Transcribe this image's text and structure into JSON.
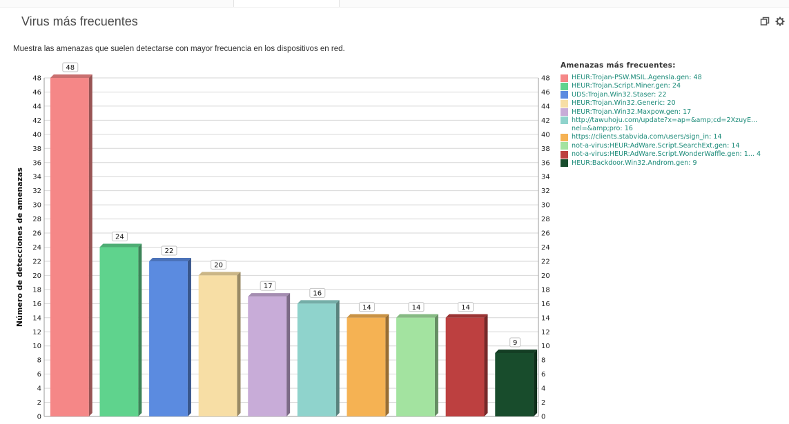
{
  "widget": {
    "title": "Virus más frecuentes",
    "description": "Muestra las amenazas que suelen detectarse con mayor frecuencia en los dispositivos en red.",
    "icons": [
      "window-restore-icon",
      "gear-icon"
    ]
  },
  "legend": {
    "title": "Amenazas más frecuentes:"
  },
  "chart_data": {
    "type": "bar",
    "ylabel": "Número de detecciones de amenazas",
    "ylim": [
      0,
      48
    ],
    "ytick_step": 2,
    "grid": true,
    "legend_position": "right",
    "series": [
      {
        "label": "HEUR:Trojan-PSW.MSIL.Agensla.gen: 48",
        "value": 48,
        "color": "#f58787"
      },
      {
        "label": "HEUR:Trojan.Script.Miner.gen: 24",
        "value": 24,
        "color": "#5fd38d"
      },
      {
        "label": "UDS:Trojan.Win32.Staser: 22",
        "value": 22,
        "color": "#5b8be0"
      },
      {
        "label": "HEUR:Trojan.Win32.Generic: 20",
        "value": 20,
        "color": "#f7dea5"
      },
      {
        "label": "HEUR:Trojan.Win32.Maxpow.gen: 17",
        "value": 17,
        "color": "#c8acd8"
      },
      {
        "label": "http://tawuhoju.com/update?x=ap=&amp;cd=2XzuyE...\nnel=&amp;pro: 16",
        "value": 16,
        "color": "#8fd3cc"
      },
      {
        "label": "https://clients.stabvida.com/users/sign_in: 14",
        "value": 14,
        "color": "#f5b253"
      },
      {
        "label": "not-a-virus:HEUR:AdWare.Script.SearchExt.gen: 14",
        "value": 14,
        "color": "#a3e3a0"
      },
      {
        "label": "not-a-virus:HEUR:AdWare.Script.WonderWaffle.gen: 1... 4",
        "value": 14,
        "color": "#bd4040"
      },
      {
        "label": "HEUR:Backdoor.Win32.Androm.gen: 9",
        "value": 9,
        "color": "#184c2c"
      }
    ]
  }
}
